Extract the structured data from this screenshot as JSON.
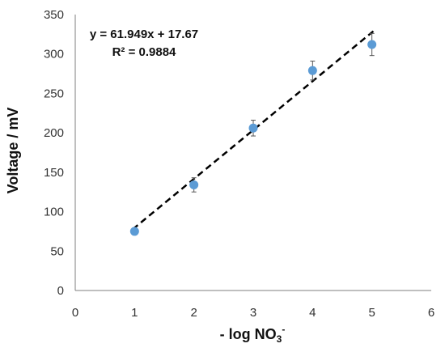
{
  "chart_data": {
    "type": "scatter",
    "xlabel": "- log NO3-",
    "xlabel_parts": {
      "main": "- log NO",
      "sub": "3",
      "sup": "-"
    },
    "ylabel": "Voltage / mV",
    "xlim": [
      0,
      6
    ],
    "ylim": [
      0,
      350
    ],
    "x_ticks": [
      "0",
      "1",
      "2",
      "3",
      "4",
      "5",
      "6"
    ],
    "y_ticks": [
      "0",
      "50",
      "100",
      "150",
      "200",
      "250",
      "300",
      "350"
    ],
    "grid": false,
    "points": [
      {
        "x": 1,
        "y": 75,
        "err": 2
      },
      {
        "x": 2,
        "y": 134,
        "err": 9
      },
      {
        "x": 3,
        "y": 206,
        "err": 10
      },
      {
        "x": 4,
        "y": 279,
        "err": 12
      },
      {
        "x": 5,
        "y": 312,
        "err": 14
      }
    ],
    "trendline": {
      "slope": 61.949,
      "intercept": 17.67,
      "x_range": [
        1,
        5
      ]
    },
    "equation_text": "y = 61.949x + 17.67",
    "r2_text": "R² = 0.9884",
    "marker_color": "#5b9bd5",
    "trendline_color": "#000000"
  }
}
